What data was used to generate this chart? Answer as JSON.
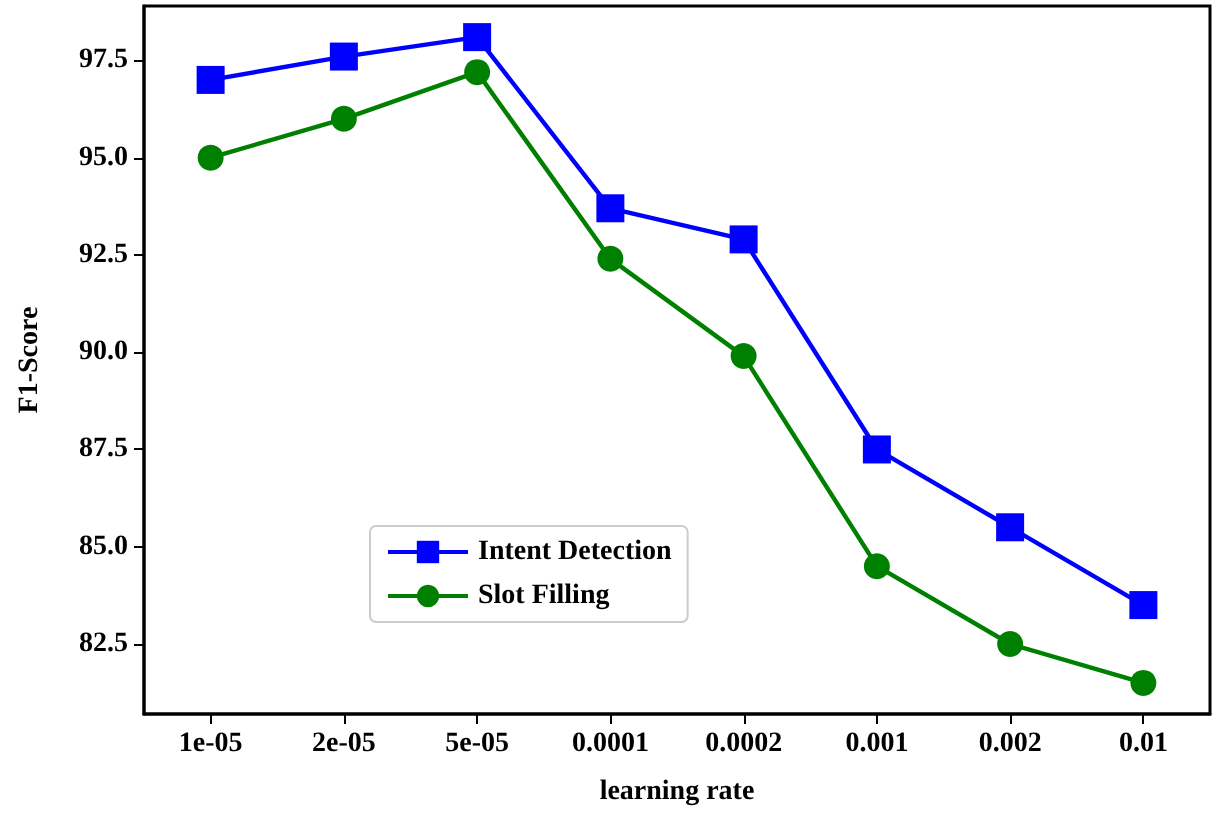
{
  "chart_data": {
    "type": "line",
    "xlabel": "learning rate",
    "ylabel": "F1-Score",
    "categories": [
      "1e-05",
      "2e-05",
      "5e-05",
      "0.0001",
      "0.0002",
      "0.001",
      "0.002",
      "0.01"
    ],
    "series": [
      {
        "name": "Intent Detection",
        "color": "#0000ff",
        "marker": "square",
        "values": [
          97.0,
          97.6,
          98.1,
          93.7,
          92.9,
          87.5,
          85.5,
          83.5
        ]
      },
      {
        "name": "Slot Filling",
        "color": "#008000",
        "marker": "circle",
        "values": [
          95.0,
          96.0,
          97.2,
          92.4,
          89.9,
          84.5,
          82.5,
          81.5
        ]
      }
    ],
    "ylim": [
      80.7,
      98.9
    ],
    "yticks": [
      82.5,
      {
        "value": 85,
        "label": "85.0"
      },
      87.5,
      {
        "value": 90,
        "label": "90.0"
      },
      92.5,
      {
        "value": 95,
        "label": "95.0"
      },
      97.5
    ],
    "grid": false,
    "legend": "bottom",
    "line_style": "solid"
  }
}
